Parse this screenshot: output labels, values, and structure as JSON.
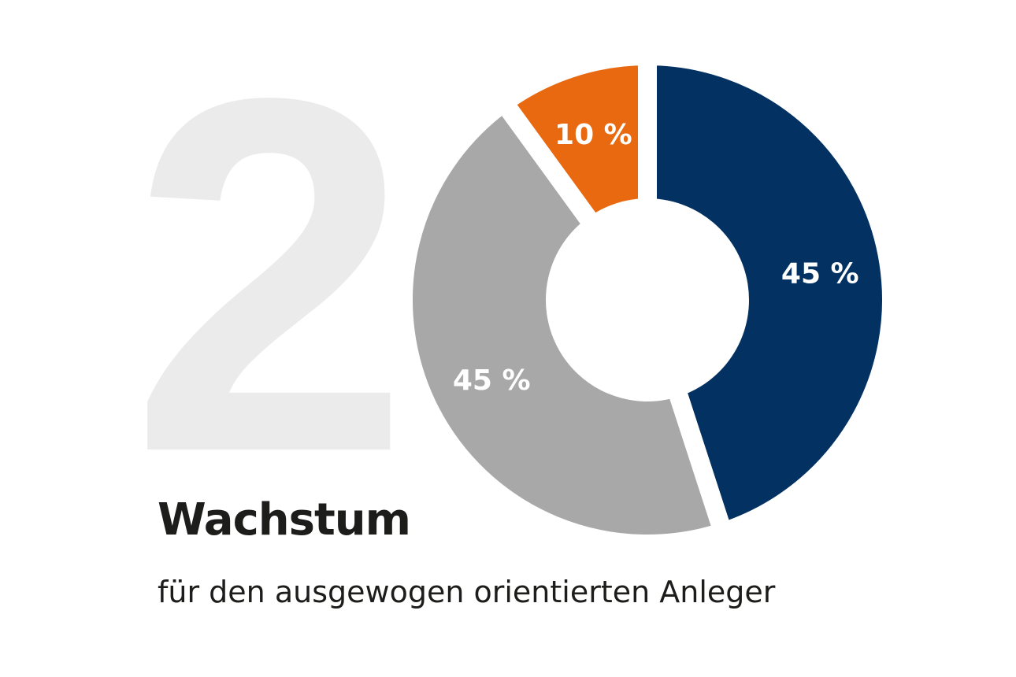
{
  "background_number": "2",
  "chart_data": {
    "type": "pie",
    "variant": "donut",
    "title": "Wachstum",
    "subtitle": "für den ausgewogen orientierten Anleger",
    "slices": [
      {
        "label": "45 %",
        "value": 45,
        "color": "#033162"
      },
      {
        "label": "45 %",
        "value": 45,
        "color": "#a8a8a8"
      },
      {
        "label": "10 %",
        "value": 10,
        "color": "#e8690f"
      }
    ],
    "start_angle": "12 o'clock",
    "direction": "clockwise"
  }
}
